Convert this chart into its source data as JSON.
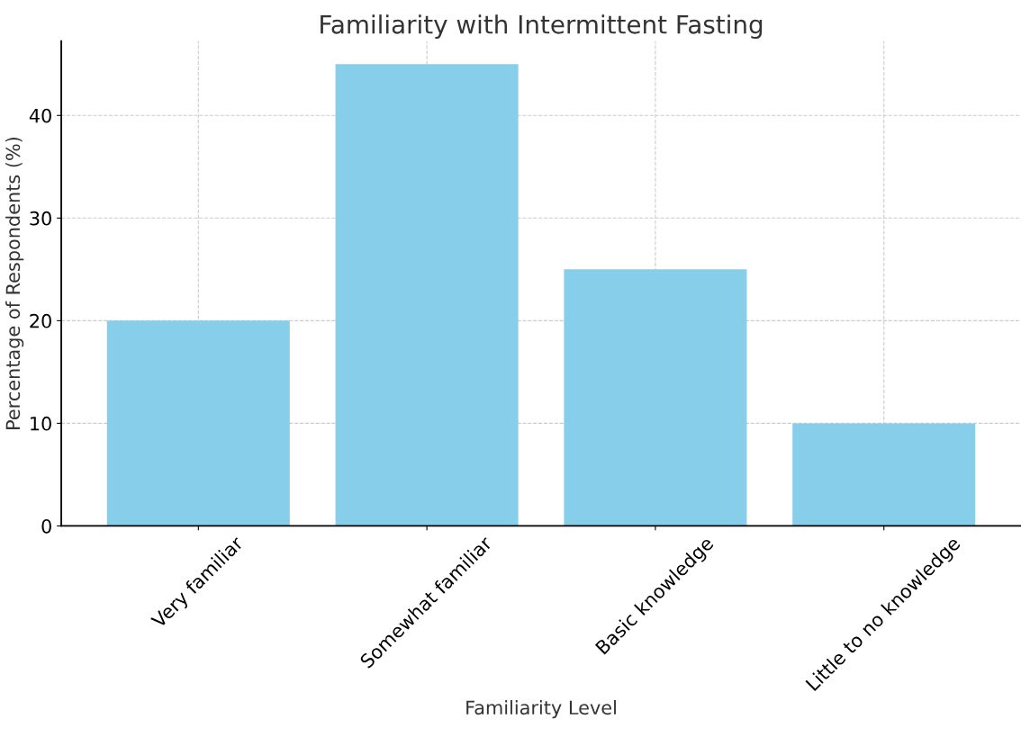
{
  "chart_data": {
    "type": "bar",
    "title": "Familiarity with Intermittent Fasting",
    "xlabel": "Familiarity Level",
    "ylabel": "Percentage of Respondents (%)",
    "categories": [
      "Very familiar",
      "Somewhat familiar",
      "Basic knowledge",
      "Little to no knowledge"
    ],
    "values": [
      20,
      45,
      25,
      10
    ],
    "color": "#87ceeb",
    "ylim": [
      0,
      47.25
    ],
    "yticks": [
      0,
      10,
      20,
      30,
      40
    ],
    "grid": true
  }
}
